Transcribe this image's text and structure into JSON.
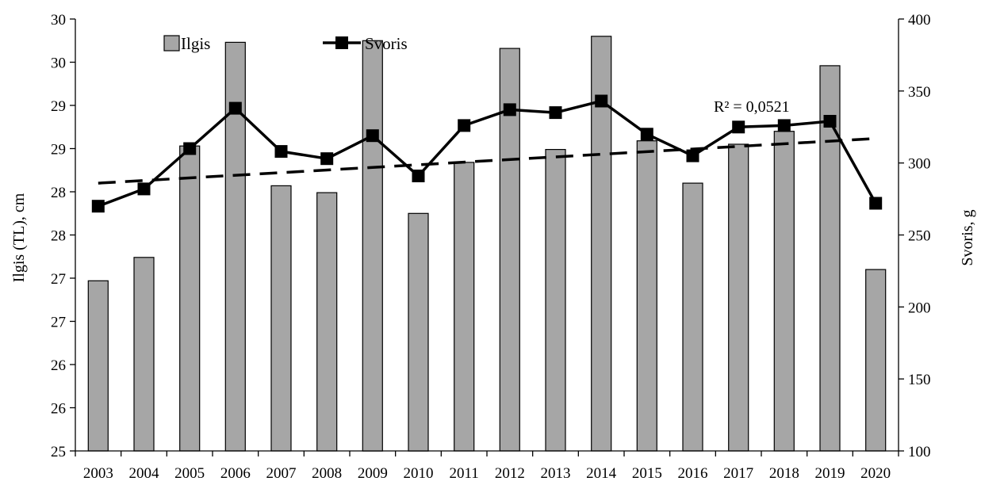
{
  "chart_data": {
    "type": "bar",
    "categories": [
      "2003",
      "2004",
      "2005",
      "2006",
      "2007",
      "2008",
      "2009",
      "2010",
      "2011",
      "2012",
      "2013",
      "2014",
      "2015",
      "2016",
      "2017",
      "2018",
      "2019",
      "2020"
    ],
    "left_axis": {
      "label": "Ilgis (TL), cm",
      "ylim": [
        25,
        30
      ],
      "tick_values": [
        25,
        25.5,
        26,
        26.5,
        27,
        27.5,
        28,
        28.5,
        29,
        29.5,
        30
      ],
      "tick_labels": [
        "25",
        "26",
        "26",
        "27",
        "27",
        "28",
        "28",
        "29",
        "29",
        "30",
        "30"
      ]
    },
    "right_axis": {
      "label": "Svoris, g",
      "ylim": [
        100,
        400
      ],
      "tick_values": [
        100,
        150,
        200,
        250,
        300,
        350,
        400
      ],
      "tick_labels": [
        "100",
        "150",
        "200",
        "250",
        "300",
        "350",
        "400"
      ]
    },
    "series": [
      {
        "name": "Ilgis",
        "kind": "bar",
        "axis": "left",
        "color": "#a6a6a6",
        "values": [
          26.97,
          27.24,
          28.53,
          29.73,
          28.07,
          27.99,
          29.75,
          27.75,
          28.34,
          29.66,
          28.49,
          29.8,
          28.59,
          28.1,
          28.55,
          28.7,
          29.46,
          27.1
        ]
      },
      {
        "name": "Svoris",
        "kind": "line",
        "axis": "right",
        "color": "#000000",
        "marker": "square",
        "values": [
          270,
          282,
          310,
          338,
          308,
          303,
          319,
          291,
          326,
          337,
          335,
          343,
          320,
          305,
          325,
          326,
          329,
          272
        ]
      },
      {
        "kind": "trendline",
        "axis": "right",
        "style": "dashed",
        "color": "#000000",
        "start": 286,
        "end": 317
      }
    ],
    "annotations": [
      "R² = 0,0521"
    ],
    "legend_position": "top-left",
    "grid": false
  }
}
